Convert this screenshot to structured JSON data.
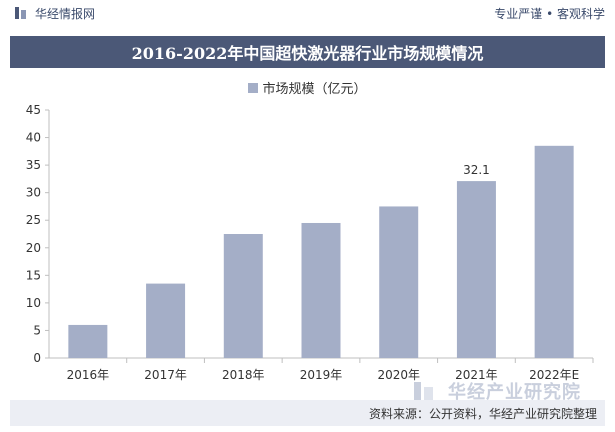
{
  "header": {
    "brand": "华经情报网",
    "slogan": "专业严谨 • 客观科学"
  },
  "title": "2016-2022年中国超快激光器行业市场规模情况",
  "legend_label": "市场规模（亿元）",
  "footer": {
    "source": "资料来源：公开资料，华经产业研究院整理",
    "watermark_logo": "华经产业研究院"
  },
  "colors": {
    "bar": "#a4aec7",
    "title_bg": "#4b5877",
    "footer_bg": "#eceef4",
    "grid": "#d9d9d9"
  },
  "chart_data": {
    "type": "bar",
    "title": "2016-2022年中国超快激光器行业市场规模情况",
    "categories": [
      "2016年",
      "2017年",
      "2018年",
      "2019年",
      "2020年",
      "2021年",
      "2022年E"
    ],
    "series": [
      {
        "name": "市场规模（亿元）",
        "values": [
          6.0,
          13.5,
          22.5,
          24.5,
          27.5,
          32.1,
          38.5
        ]
      }
    ],
    "data_labels": [
      {
        "category": "2021年",
        "text": "32.1"
      }
    ],
    "yticks": [
      "0",
      "5",
      "10",
      "15",
      "20",
      "25",
      "30",
      "35",
      "40",
      "45"
    ],
    "ylim": [
      0,
      45
    ],
    "xlabel": "",
    "ylabel": "",
    "grid": false,
    "legend": "top-center"
  }
}
